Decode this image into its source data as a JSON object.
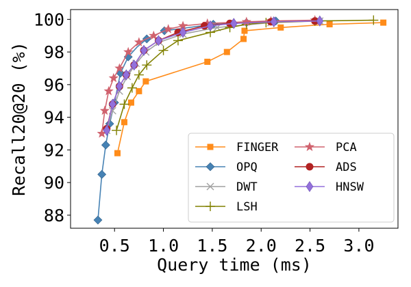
{
  "chart_data": {
    "type": "line",
    "title": "",
    "xlabel": "Query time (ms)",
    "ylabel": "Recall20@20 (%)",
    "xlim": [
      0.05,
      3.4
    ],
    "ylim": [
      87.2,
      100.6
    ],
    "xticks": [
      0.5,
      1.0,
      1.5,
      2.0,
      2.5,
      3.0
    ],
    "xtick_labels": [
      "0.5",
      "1.0",
      "1.5",
      "2.0",
      "2.5",
      "3.0"
    ],
    "yticks": [
      88,
      90,
      92,
      94,
      96,
      98,
      100
    ],
    "ytick_labels": [
      "88",
      "90",
      "92",
      "94",
      "96",
      "98",
      "100"
    ],
    "grid": false,
    "legend_position": "lower-right",
    "series": [
      {
        "name": "FINGER",
        "color": "#ff8c1a",
        "marker": "square",
        "x": [
          0.53,
          0.6,
          0.67,
          0.75,
          0.82,
          1.45,
          1.65,
          1.82,
          1.83,
          2.2,
          2.7,
          3.25
        ],
        "y": [
          91.8,
          93.7,
          94.9,
          95.6,
          96.2,
          97.4,
          98.0,
          98.8,
          99.3,
          99.5,
          99.7,
          99.8
        ]
      },
      {
        "name": "OPQ",
        "color": "#4682b4",
        "marker": "diamond",
        "x": [
          0.33,
          0.37,
          0.41,
          0.45,
          0.5,
          0.56,
          0.64,
          0.73,
          0.83,
          1.01,
          1.51,
          1.85,
          2.15
        ],
        "y": [
          87.7,
          90.5,
          92.3,
          93.6,
          94.9,
          96.7,
          97.7,
          98.3,
          98.8,
          99.3,
          99.7,
          99.8,
          99.9
        ],
        "marker_indices": [
          0,
          1,
          2,
          3,
          4,
          5,
          6,
          8,
          9,
          10,
          11,
          12
        ]
      },
      {
        "name": "DWT",
        "color": "#a0a0a0",
        "marker": "x",
        "x": [
          0.42,
          0.48,
          0.55,
          0.63,
          0.72,
          0.82,
          0.96,
          1.2,
          1.55,
          2.1,
          2.6
        ],
        "y": [
          93.2,
          94.4,
          95.6,
          96.5,
          97.3,
          98.0,
          98.6,
          99.1,
          99.5,
          99.8,
          99.9
        ]
      },
      {
        "name": "LSH",
        "color": "#808000",
        "marker": "plus",
        "x": [
          0.52,
          0.6,
          0.68,
          0.75,
          0.83,
          1.0,
          1.15,
          1.48,
          1.68,
          1.85,
          2.05,
          2.55,
          3.15
        ],
        "y": [
          93.2,
          94.8,
          95.8,
          96.6,
          97.2,
          98.1,
          98.7,
          99.2,
          99.5,
          99.7,
          99.8,
          99.9,
          99.95
        ]
      },
      {
        "name": "PCA",
        "color": "#d0626e",
        "marker": "star",
        "x": [
          0.37,
          0.4,
          0.44,
          0.49,
          0.55,
          0.64,
          0.75,
          0.9,
          1.05,
          1.2,
          1.45,
          1.85,
          2.1,
          2.55
        ],
        "y": [
          93.0,
          94.4,
          95.6,
          96.4,
          97.0,
          98.0,
          98.6,
          99.0,
          99.4,
          99.6,
          99.75,
          99.85,
          99.9,
          99.95
        ]
      },
      {
        "name": "ADS",
        "color": "#b22222",
        "marker": "circle",
        "x": [
          0.42,
          0.48,
          0.55,
          0.62,
          0.7,
          0.8,
          0.95,
          1.15,
          1.42,
          1.68,
          2.1,
          2.55
        ],
        "y": [
          93.3,
          94.8,
          95.9,
          96.6,
          97.2,
          98.1,
          98.7,
          99.2,
          99.6,
          99.75,
          99.85,
          99.9
        ]
      },
      {
        "name": "HNSW",
        "color": "#9370db",
        "marker": "thin_diamond",
        "x": [
          0.42,
          0.48,
          0.55,
          0.62,
          0.7,
          0.8,
          0.95,
          1.2,
          1.48,
          1.72,
          2.13,
          2.6
        ],
        "y": [
          93.2,
          94.8,
          95.9,
          96.6,
          97.2,
          98.1,
          98.7,
          99.2,
          99.6,
          99.75,
          99.85,
          99.9
        ]
      }
    ]
  }
}
